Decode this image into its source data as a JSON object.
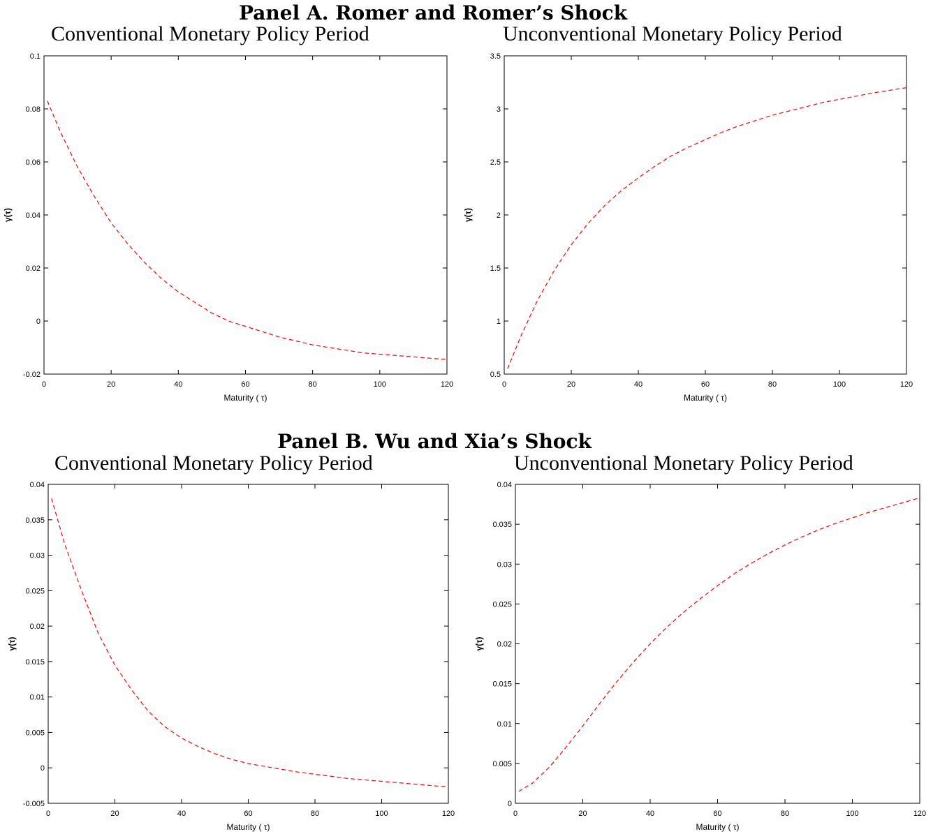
{
  "panels": [
    {
      "title": "Panel A. Romer and Romer’s Shock"
    },
    {
      "title": "Panel B. Wu and Xia’s Shock"
    }
  ],
  "chart_data": [
    {
      "type": "line",
      "panel": "Panel A. Romer and Romer’s Shock",
      "title": "Conventional Monetary Policy Period",
      "xlabel": "Maturity ( τ)",
      "ylabel": "γ(τ)",
      "xlim": [
        0,
        120
      ],
      "ylim": [
        -0.02,
        0.1
      ],
      "xticks": [
        0,
        20,
        40,
        60,
        80,
        100,
        120
      ],
      "yticks": [
        -0.02,
        0,
        0.02,
        0.04,
        0.06,
        0.08,
        0.1
      ],
      "ytick_labels": [
        "-0.02",
        "0",
        "0.02",
        "0.04",
        "0.06",
        "0.08",
        "0.1"
      ],
      "grid": false,
      "line_color": "#ff0000",
      "line_style": "dashed",
      "x": [
        1,
        5,
        10,
        15,
        20,
        25,
        30,
        35,
        40,
        45,
        50,
        55,
        60,
        65,
        70,
        75,
        80,
        85,
        90,
        95,
        100,
        105,
        110,
        115,
        120
      ],
      "y": [
        0.083,
        0.071,
        0.058,
        0.047,
        0.037,
        0.029,
        0.022,
        0.016,
        0.011,
        0.007,
        0.003,
        0.0,
        -0.002,
        -0.004,
        -0.006,
        -0.0075,
        -0.009,
        -0.01,
        -0.011,
        -0.012,
        -0.0125,
        -0.013,
        -0.0135,
        -0.014,
        -0.0145
      ]
    },
    {
      "type": "line",
      "panel": "Panel A. Romer and Romer’s Shock",
      "title": "Unconventional Monetary Policy Period",
      "xlabel": "Maturity ( τ)",
      "ylabel": "γ(τ)",
      "xlim": [
        0,
        120
      ],
      "ylim": [
        0.5,
        3.5
      ],
      "xticks": [
        0,
        20,
        40,
        60,
        80,
        100,
        120
      ],
      "yticks": [
        0.5,
        1,
        1.5,
        2,
        2.5,
        3,
        3.5
      ],
      "ytick_labels": [
        "0.5",
        "1",
        "1.5",
        "2",
        "2.5",
        "3",
        "3.5"
      ],
      "grid": false,
      "line_color": "#ff0000",
      "line_style": "dashed",
      "x": [
        1,
        5,
        10,
        15,
        20,
        25,
        30,
        35,
        40,
        45,
        50,
        55,
        60,
        65,
        70,
        75,
        80,
        85,
        90,
        95,
        100,
        105,
        110,
        115,
        120
      ],
      "y": [
        0.55,
        0.86,
        1.2,
        1.48,
        1.72,
        1.92,
        2.09,
        2.23,
        2.35,
        2.46,
        2.56,
        2.64,
        2.71,
        2.78,
        2.84,
        2.89,
        2.94,
        2.98,
        3.02,
        3.06,
        3.09,
        3.12,
        3.15,
        3.175,
        3.2
      ]
    },
    {
      "type": "line",
      "panel": "Panel B. Wu and Xia’s Shock",
      "title": "Conventional Monetary Policy Period",
      "xlabel": "Maturity ( τ)",
      "ylabel": "γ(τ)",
      "xlim": [
        0,
        120
      ],
      "ylim": [
        -0.005,
        0.04
      ],
      "xticks": [
        0,
        20,
        40,
        60,
        80,
        100,
        120
      ],
      "yticks": [
        -0.005,
        0,
        0.005,
        0.01,
        0.015,
        0.02,
        0.025,
        0.03,
        0.035,
        0.04
      ],
      "ytick_labels": [
        "-0.005",
        "0",
        "0.005",
        "0.01",
        "0.015",
        "0.02",
        "0.025",
        "0.03",
        "0.035",
        "0.04"
      ],
      "grid": false,
      "line_color": "#ff0000",
      "line_style": "dashed",
      "x": [
        1,
        5,
        10,
        15,
        20,
        25,
        30,
        35,
        40,
        45,
        50,
        55,
        60,
        65,
        70,
        75,
        80,
        85,
        90,
        95,
        100,
        105,
        110,
        115,
        120
      ],
      "y": [
        0.038,
        0.0315,
        0.025,
        0.019,
        0.0145,
        0.011,
        0.008,
        0.0058,
        0.0042,
        0.003,
        0.002,
        0.0012,
        0.0006,
        0.0002,
        -0.0002,
        -0.0006,
        -0.0009,
        -0.0012,
        -0.0015,
        -0.0017,
        -0.0019,
        -0.0021,
        -0.0023,
        -0.0025,
        -0.0027
      ]
    },
    {
      "type": "line",
      "panel": "Panel B. Wu and Xia’s Shock",
      "title": "Unconventional Monetary Policy Period",
      "xlabel": "Maturity ( τ)",
      "ylabel": "γ(τ)",
      "xlim": [
        0,
        120
      ],
      "ylim": [
        0,
        0.04
      ],
      "xticks": [
        0,
        20,
        40,
        60,
        80,
        100,
        120
      ],
      "yticks": [
        0,
        0.005,
        0.01,
        0.015,
        0.02,
        0.025,
        0.03,
        0.035,
        0.04
      ],
      "ytick_labels": [
        "0",
        "0.005",
        "0.01",
        "0.015",
        "0.02",
        "0.025",
        "0.03",
        "0.035",
        "0.04"
      ],
      "grid": false,
      "line_color": "#ff0000",
      "line_style": "dashed",
      "x": [
        1,
        5,
        10,
        15,
        20,
        25,
        30,
        35,
        40,
        45,
        50,
        55,
        60,
        65,
        70,
        75,
        80,
        85,
        90,
        95,
        100,
        105,
        110,
        115,
        120
      ],
      "y": [
        0.0015,
        0.0025,
        0.0045,
        0.007,
        0.0097,
        0.0125,
        0.0152,
        0.0177,
        0.02,
        0.0221,
        0.024,
        0.0257,
        0.0273,
        0.0288,
        0.0301,
        0.0313,
        0.0324,
        0.0334,
        0.0343,
        0.0351,
        0.0358,
        0.0365,
        0.0371,
        0.0377,
        0.0383
      ]
    }
  ]
}
